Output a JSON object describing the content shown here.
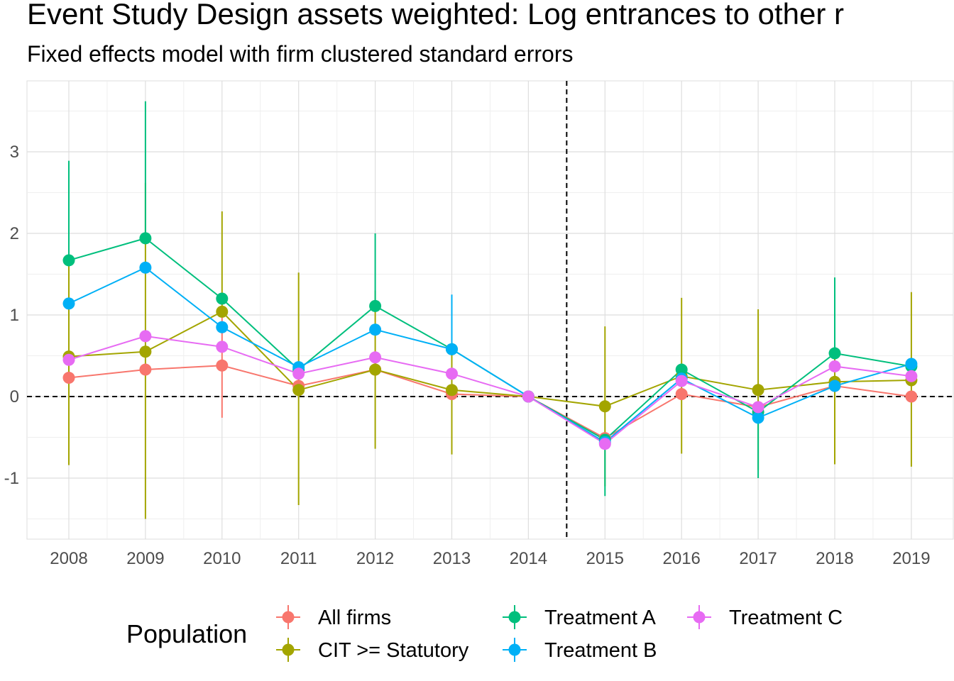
{
  "chart_data": {
    "type": "line",
    "title": "Event Study Design assets weighted: Log entrances to other r",
    "subtitle": "Fixed effects model with firm clustered standard errors",
    "xlabel": "",
    "ylabel": "",
    "categories": [
      "2008",
      "2009",
      "2010",
      "2011",
      "2012",
      "2013",
      "2014",
      "2015",
      "2016",
      "2017",
      "2018",
      "2019"
    ],
    "ylim": [
      -1.75,
      3.87
    ],
    "yticks": [
      -1,
      0,
      1,
      2,
      3
    ],
    "ytick_labels": [
      "-1",
      "0",
      "1",
      "2",
      "3"
    ],
    "hline": 0,
    "vline_between": [
      "2014",
      "2015"
    ],
    "grid": true,
    "legend": {
      "title": "Population",
      "position": "bottom"
    },
    "series": [
      {
        "name": "All firms",
        "color": "#F8766D",
        "values": [
          0.23,
          0.33,
          0.38,
          0.13,
          0.33,
          0.03,
          0.0,
          -0.51,
          0.03,
          -0.13,
          0.13,
          0.0
        ],
        "lower": [
          null,
          null,
          -0.26,
          null,
          null,
          null,
          0.0,
          null,
          null,
          null,
          null,
          null
        ],
        "upper": [
          null,
          null,
          1.02,
          null,
          null,
          null,
          0.0,
          null,
          null,
          null,
          null,
          null
        ]
      },
      {
        "name": "CIT >= Statutory",
        "color": "#A3A500",
        "values": [
          0.49,
          0.55,
          1.04,
          0.08,
          0.33,
          0.08,
          0.0,
          -0.12,
          0.25,
          0.08,
          0.18,
          0.2
        ],
        "lower": [
          -0.84,
          -1.5,
          null,
          -1.33,
          -0.64,
          -0.71,
          0.0,
          -1.1,
          -0.7,
          -0.9,
          -0.83,
          -0.86
        ],
        "upper": [
          1.82,
          2.62,
          2.27,
          1.52,
          1.3,
          0.88,
          0.0,
          0.86,
          1.21,
          1.07,
          1.2,
          1.28
        ]
      },
      {
        "name": "Treatment A",
        "color": "#00BF7D",
        "values": [
          1.67,
          1.94,
          1.2,
          0.33,
          1.11,
          0.58,
          0.0,
          -0.53,
          0.33,
          -0.19,
          0.53,
          0.37
        ],
        "lower": [
          null,
          null,
          null,
          null,
          null,
          null,
          0.0,
          -1.22,
          null,
          -1.0,
          null,
          null
        ],
        "upper": [
          2.89,
          3.62,
          null,
          null,
          2.0,
          null,
          0.0,
          null,
          null,
          null,
          1.46,
          null
        ]
      },
      {
        "name": "Treatment B",
        "color": "#00B0F6",
        "values": [
          1.14,
          1.58,
          0.85,
          0.36,
          0.82,
          0.58,
          0.0,
          -0.56,
          0.22,
          -0.26,
          0.13,
          0.4
        ],
        "lower": [
          null,
          null,
          null,
          null,
          null,
          null,
          0.0,
          null,
          null,
          null,
          null,
          null
        ],
        "upper": [
          null,
          null,
          null,
          null,
          null,
          1.25,
          0.0,
          null,
          null,
          null,
          null,
          null
        ]
      },
      {
        "name": "Treatment C",
        "color": "#E76BF3",
        "values": [
          0.45,
          0.74,
          0.61,
          0.28,
          0.48,
          0.28,
          0.0,
          -0.58,
          0.19,
          -0.13,
          0.37,
          0.25
        ],
        "lower": [
          null,
          null,
          null,
          null,
          null,
          null,
          0.0,
          null,
          null,
          null,
          null,
          null
        ],
        "upper": [
          null,
          null,
          null,
          null,
          null,
          null,
          0.0,
          null,
          null,
          null,
          null,
          null
        ]
      }
    ]
  }
}
